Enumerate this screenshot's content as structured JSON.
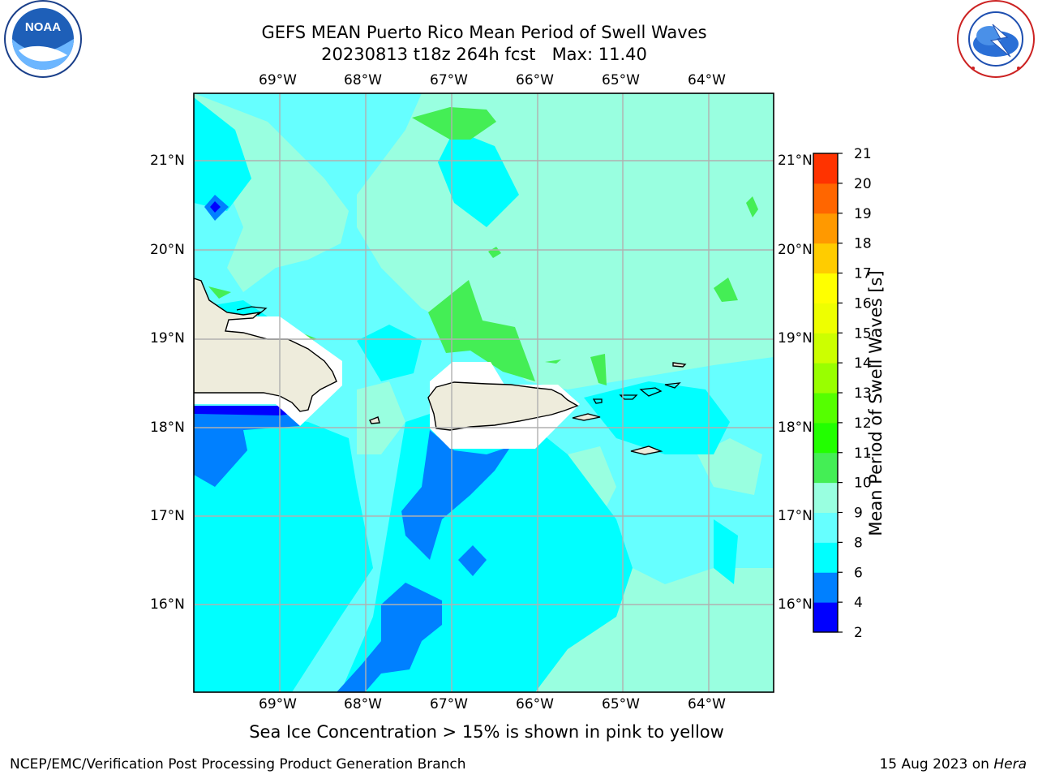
{
  "header": {
    "title_line1": "GEFS MEAN Puerto Rico Mean Period of Swell Waves",
    "title_line2": "20230813 t18z 264h fcst   Max: 11.40"
  },
  "map": {
    "lon_labels": [
      "69°W",
      "68°W",
      "67°W",
      "66°W",
      "65°W",
      "64°W"
    ],
    "lat_labels": [
      "21°N",
      "20°N",
      "19°N",
      "18°N",
      "17°N",
      "16°N"
    ],
    "land_color": "#eeecdc",
    "coast_color": "#000000",
    "grid_color": "#b0b0b0"
  },
  "colorbar": {
    "label": "Mean Period of Swell Waves [s]",
    "ticks": [
      "2",
      "4",
      "6",
      "8",
      "9",
      "10",
      "11",
      "12",
      "13",
      "14",
      "15",
      "16",
      "17",
      "18",
      "19",
      "20",
      "21"
    ],
    "colors": [
      "#0000ff",
      "#0080ff",
      "#00ffff",
      "#66ffff",
      "#99ffe0",
      "#44ee55",
      "#22ff00",
      "#55ff00",
      "#99ff00",
      "#ccff00",
      "#eeff00",
      "#ffff00",
      "#ffcc00",
      "#ff9900",
      "#ff6600",
      "#ff3300",
      "#ff0000"
    ]
  },
  "caption": "Sea Ice Concentration > 15% is shown in pink to yellow",
  "footer": {
    "left": "NCEP/EMC/Verification Post Processing Product Generation Branch",
    "date": "15 Aug 2023 on ",
    "machine": "Hera"
  },
  "logos": {
    "noaa_text": "NOAA",
    "noaa_ring": "NATIONAL OCEANIC AND ATMOSPHERIC ADMINISTRATION · U.S. DEPARTMENT OF COMMERCE",
    "nws_ring": "NATIONAL WEATHER SERVICE"
  }
}
